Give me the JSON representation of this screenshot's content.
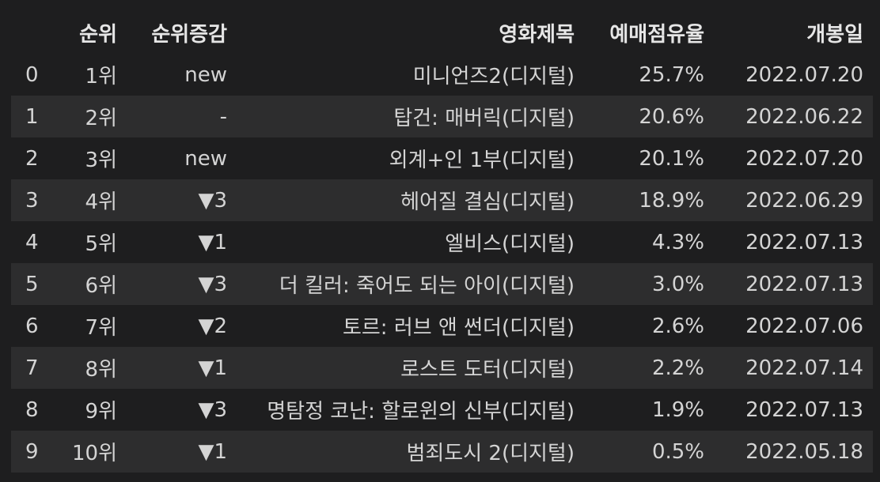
{
  "table": {
    "headers": [
      "",
      "순위",
      "순위증감",
      "영화제목",
      "예매점유율",
      "개봉일"
    ],
    "rows": [
      {
        "index": "0",
        "rank": "1위",
        "change": "new",
        "title": "미니언즈2(디지털)",
        "share": "25.7%",
        "date": "2022.07.20"
      },
      {
        "index": "1",
        "rank": "2위",
        "change": "-",
        "title": "탑건: 매버릭(디지털)",
        "share": "20.6%",
        "date": "2022.06.22"
      },
      {
        "index": "2",
        "rank": "3위",
        "change": "new",
        "title": "외계+인 1부(디지털)",
        "share": "20.1%",
        "date": "2022.07.20"
      },
      {
        "index": "3",
        "rank": "4위",
        "change": "▼3",
        "title": "헤어질 결심(디지털)",
        "share": "18.9%",
        "date": "2022.06.29"
      },
      {
        "index": "4",
        "rank": "5위",
        "change": "▼1",
        "title": "엘비스(디지털)",
        "share": "4.3%",
        "date": "2022.07.13"
      },
      {
        "index": "5",
        "rank": "6위",
        "change": "▼3",
        "title": "더 킬러: 죽어도 되는 아이(디지털)",
        "share": "3.0%",
        "date": "2022.07.13"
      },
      {
        "index": "6",
        "rank": "7위",
        "change": "▼2",
        "title": "토르: 러브 앤 썬더(디지털)",
        "share": "2.6%",
        "date": "2022.07.06"
      },
      {
        "index": "7",
        "rank": "8위",
        "change": "▼1",
        "title": "로스트 도터(디지털)",
        "share": "2.2%",
        "date": "2022.07.14"
      },
      {
        "index": "8",
        "rank": "9위",
        "change": "▼3",
        "title": "명탐정 코난: 할로윈의 신부(디지털)",
        "share": "1.9%",
        "date": "2022.07.13"
      },
      {
        "index": "9",
        "rank": "10위",
        "change": "▼1",
        "title": "범죄도시 2(디지털)",
        "share": "0.5%",
        "date": "2022.05.18"
      }
    ]
  }
}
